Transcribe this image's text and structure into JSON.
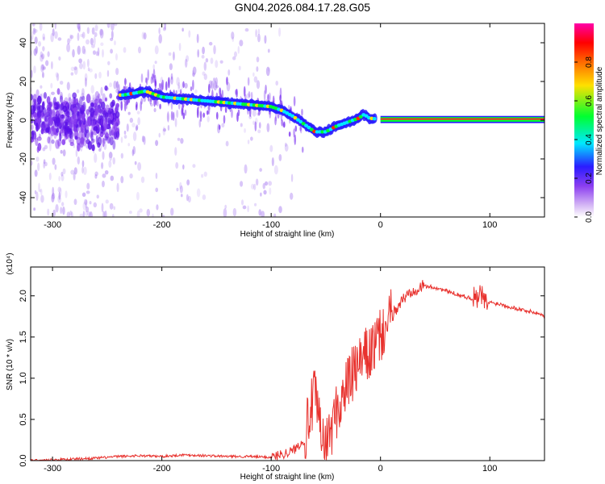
{
  "title": "GN04.2026.084.17.28.G05",
  "chart_data": [
    {
      "type": "heatmap",
      "xlabel": "Height of straight line (km)",
      "ylabel": "Frequency (Hz)",
      "xlim": [
        -320,
        150
      ],
      "ylim": [
        -50,
        50
      ],
      "x_ticks": [
        -300,
        -200,
        -100,
        0,
        100
      ],
      "y_ticks": [
        -40,
        -20,
        0,
        20,
        40
      ],
      "grid": false,
      "colorbar": {
        "label": "Normalized spectral amplitude",
        "range": [
          0.0,
          1.0
        ],
        "ticks": [
          "0.0",
          "0.2",
          "0.4",
          "0.6",
          "0.8"
        ],
        "colors": [
          "#ffffff",
          "#c9a8f0",
          "#8b3ef0",
          "#2a1cff",
          "#00e8ff",
          "#00ff30",
          "#ffe000",
          "#ff6a00",
          "#ff0000",
          "#ff00a8"
        ]
      },
      "ridge": {
        "x": [
          -235,
          -215,
          -200,
          -180,
          -160,
          -140,
          -120,
          -100,
          -90,
          -80,
          -70,
          -60,
          -50,
          -40,
          -30,
          -20,
          -15,
          -10,
          0,
          150
        ],
        "y": [
          13,
          15,
          12,
          11,
          10,
          9,
          8,
          7,
          5,
          2,
          -2,
          -6,
          -6,
          -3,
          -1,
          1,
          3,
          1,
          0.5,
          0.5
        ]
      }
    },
    {
      "type": "line",
      "xlabel": "Height of straight line (km)",
      "ylabel": "SNR (10 * v/v)",
      "y_multiplier": "(x10⁴)",
      "xlim": [
        -320,
        150
      ],
      "ylim": [
        0,
        2.35
      ],
      "x_ticks": [
        -300,
        -200,
        -100,
        0,
        100
      ],
      "y_ticks": [
        0.0,
        0.5,
        1.0,
        1.5,
        2.0
      ],
      "y_tick_labels": [
        "0.0",
        "0.5",
        "1.0",
        "1.5",
        "2.0"
      ],
      "color": "#e8322e",
      "series": [
        {
          "x": [
            -320,
            -300,
            -280,
            -260,
            -240,
            -220,
            -200,
            -180,
            -160,
            -140,
            -120,
            -100,
            -90,
            -80,
            -70,
            -65,
            -60,
            -55,
            -50,
            -45,
            -40,
            -35,
            -30,
            -25,
            -20,
            -15,
            -10,
            -5,
            0,
            10,
            20,
            30,
            40,
            50,
            60,
            70,
            80,
            90,
            92,
            95,
            100,
            110,
            120,
            130,
            140,
            150
          ],
          "y": [
            0.0,
            0.01,
            0.02,
            0.03,
            0.05,
            0.06,
            0.05,
            0.07,
            0.06,
            0.05,
            0.05,
            0.04,
            0.08,
            0.12,
            0.25,
            0.55,
            0.8,
            0.35,
            0.15,
            0.4,
            0.6,
            0.75,
            0.95,
            1.05,
            1.15,
            1.25,
            1.3,
            1.4,
            1.5,
            1.75,
            1.95,
            2.08,
            2.12,
            2.1,
            2.06,
            2.02,
            1.98,
            1.95,
            2.05,
            1.9,
            1.92,
            1.9,
            1.86,
            1.83,
            1.8,
            1.76
          ]
        }
      ]
    }
  ]
}
